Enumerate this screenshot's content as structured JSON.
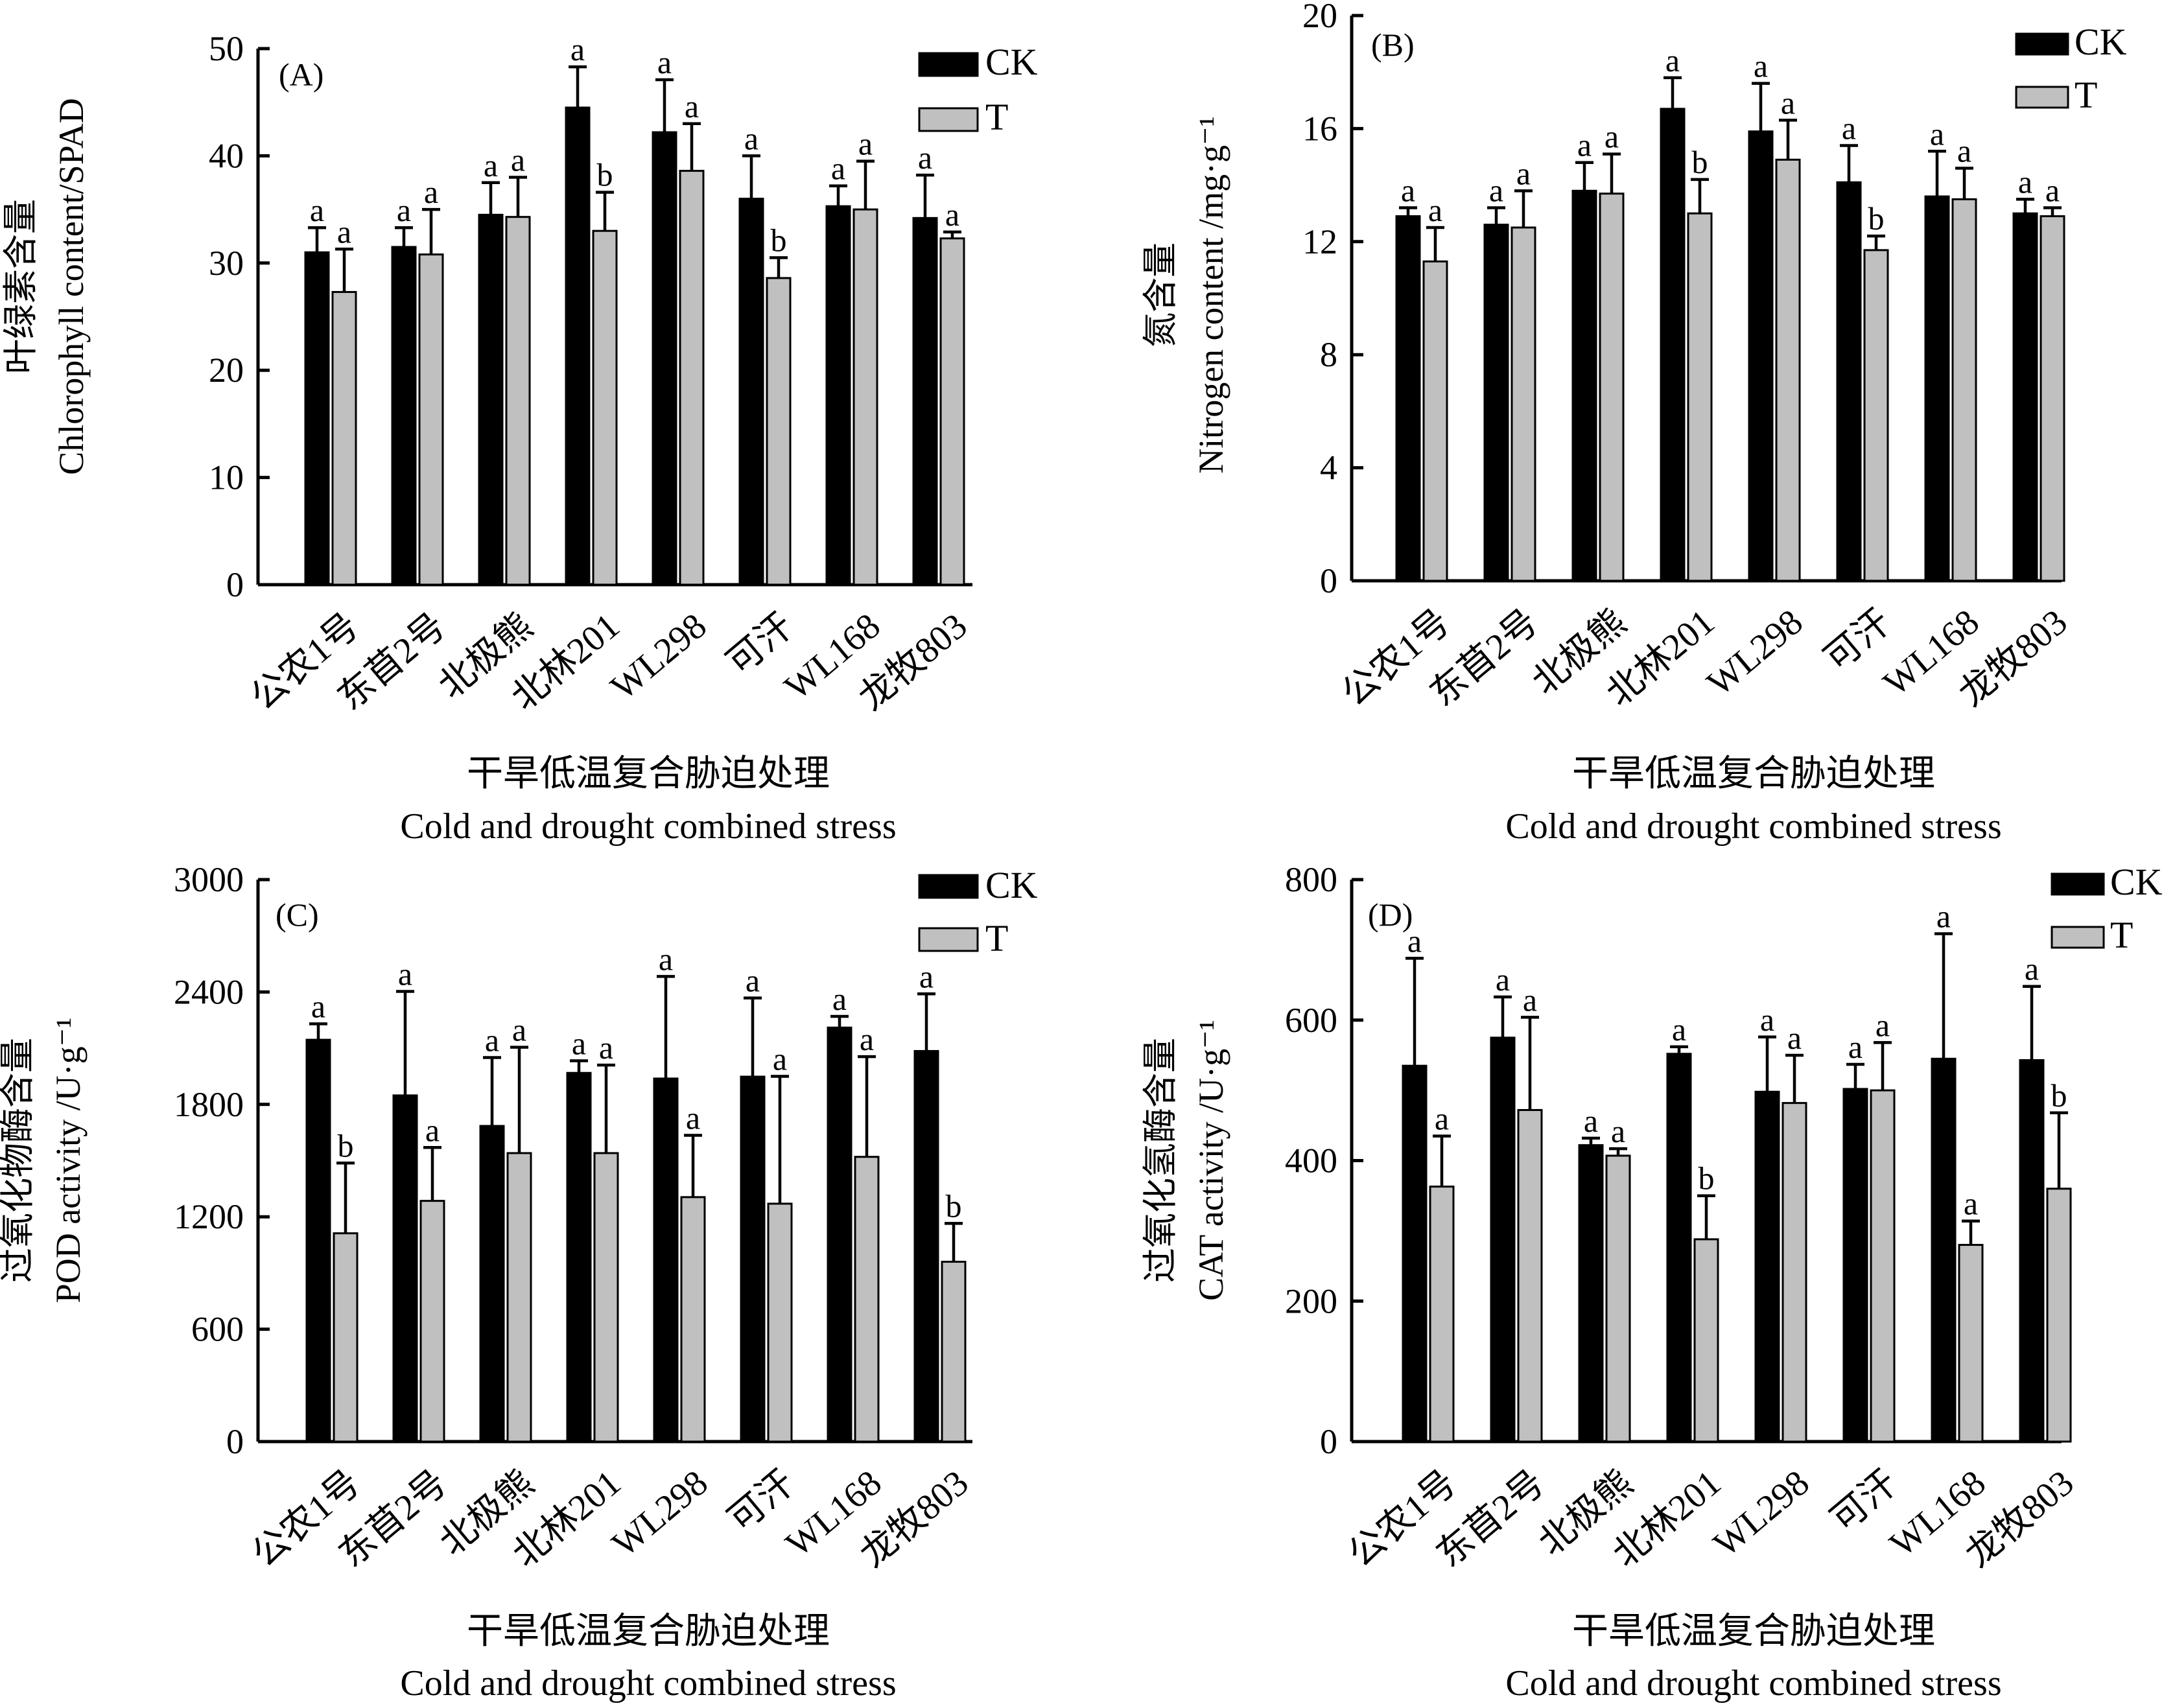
{
  "colors": {
    "CK": "#000000",
    "T": "#c0c0c0"
  },
  "chart_data": [
    {
      "type": "bar",
      "panel": "(A)",
      "categories": [
        "公农1号",
        "东苜2号",
        "北极熊",
        "北林201",
        "WL298",
        "可汗",
        "WL168",
        "龙牧803"
      ],
      "ylabel_cn": "叶绿素含量",
      "ylabel_en": "Chlorophyll content/SPAD",
      "xlabel_cn": "干旱低温复合胁迫处理",
      "xlabel_en": "Cold and drought combined stress",
      "ylim": [
        0,
        50
      ],
      "yticks": [
        0,
        10,
        20,
        30,
        40,
        50
      ],
      "series": [
        {
          "name": "CK",
          "values": [
            31.0,
            31.5,
            34.5,
            44.5,
            42.2,
            36.0,
            35.3,
            34.2
          ],
          "errors": [
            2.3,
            1.8,
            3.0,
            3.8,
            4.9,
            4.0,
            1.9,
            4.0
          ],
          "letters": [
            "a",
            "a",
            "a",
            "a",
            "a",
            "a",
            "a",
            "a"
          ]
        },
        {
          "name": "T",
          "values": [
            27.3,
            30.8,
            34.3,
            33.0,
            38.6,
            28.6,
            35.0,
            32.3
          ],
          "errors": [
            4.0,
            4.2,
            3.7,
            3.6,
            4.4,
            1.9,
            4.5,
            0.6
          ],
          "letters": [
            "a",
            "a",
            "a",
            "b",
            "a",
            "b",
            "a",
            "a"
          ]
        }
      ],
      "legend": [
        "CK",
        "T"
      ],
      "legend_position": "top-right"
    },
    {
      "type": "bar",
      "panel": "(B)",
      "categories": [
        "公农1号",
        "东苜2号",
        "北极熊",
        "北林201",
        "WL298",
        "可汗",
        "WL168",
        "龙牧803"
      ],
      "ylabel_cn": "氮含量",
      "ylabel_en": "Nitrogen content /mg·g⁻¹",
      "xlabel_cn": "干旱低温复合胁迫处理",
      "xlabel_en": "Cold and drought combined stress",
      "ylim": [
        0,
        20
      ],
      "yticks": [
        0,
        4,
        8,
        12,
        16,
        20
      ],
      "series": [
        {
          "name": "CK",
          "values": [
            12.9,
            12.6,
            13.8,
            16.7,
            15.9,
            14.1,
            13.6,
            13.0
          ],
          "errors": [
            0.3,
            0.6,
            1.0,
            1.1,
            1.7,
            1.3,
            1.6,
            0.5
          ],
          "letters": [
            "a",
            "a",
            "a",
            "a",
            "a",
            "a",
            "a",
            "a"
          ]
        },
        {
          "name": "T",
          "values": [
            11.3,
            12.5,
            13.7,
            13.0,
            14.9,
            11.7,
            13.5,
            12.9
          ],
          "errors": [
            1.2,
            1.3,
            1.4,
            1.2,
            1.4,
            0.5,
            1.1,
            0.3
          ],
          "letters": [
            "a",
            "a",
            "a",
            "b",
            "a",
            "b",
            "a",
            "a"
          ]
        }
      ],
      "legend": [
        "CK",
        "T"
      ],
      "legend_position": "top-right"
    },
    {
      "type": "bar",
      "panel": "(C)",
      "categories": [
        "公农1号",
        "东苜2号",
        "北极熊",
        "北林201",
        "WL298",
        "可汗",
        "WL168",
        "龙牧803"
      ],
      "ylabel_cn": "过氧化物酶含量",
      "ylabel_en": "POD activity /U·g⁻¹",
      "xlabel_cn": "干旱低温复合胁迫处理",
      "xlabel_en": "Cold and drought combined stress",
      "ylim": [
        0,
        3000
      ],
      "yticks": [
        0,
        600,
        1200,
        1800,
        2400,
        3000
      ],
      "series": [
        {
          "name": "CK",
          "values": [
            2145,
            1848,
            1685,
            1968,
            1938,
            1948,
            2210,
            2085
          ],
          "errors": [
            85,
            555,
            365,
            65,
            545,
            420,
            60,
            305
          ],
          "letters": [
            "a",
            "a",
            "a",
            "a",
            "a",
            "a",
            "a",
            "a"
          ]
        },
        {
          "name": "T",
          "values": [
            1112,
            1285,
            1540,
            1540,
            1305,
            1270,
            1520,
            960
          ],
          "errors": [
            375,
            285,
            565,
            470,
            330,
            680,
            535,
            205
          ],
          "letters": [
            "b",
            "a",
            "a",
            "a",
            "a",
            "a",
            "a",
            "b"
          ]
        }
      ],
      "legend": [
        "CK",
        "T"
      ],
      "legend_position": "top-right"
    },
    {
      "type": "bar",
      "panel": "(D)",
      "categories": [
        "公农1号",
        "东苜2号",
        "北极熊",
        "北林201",
        "WL298",
        "可汗",
        "WL168",
        "龙牧803"
      ],
      "ylabel_cn": "过氧化氢酶含量",
      "ylabel_en": "CAT activity /U·g⁻¹",
      "xlabel_cn": "干旱低温复合胁迫处理",
      "xlabel_en": "Cold and drought combined stress",
      "ylim": [
        0,
        800
      ],
      "yticks": [
        0,
        200,
        400,
        600,
        800
      ],
      "series": [
        {
          "name": "CK",
          "values": [
            535,
            575,
            422,
            552,
            498,
            502,
            545,
            543
          ],
          "errors": [
            153,
            58,
            10,
            10,
            78,
            35,
            178,
            105
          ],
          "letters": [
            "a",
            "a",
            "a",
            "a",
            "a",
            "a",
            "a",
            "a"
          ]
        },
        {
          "name": "T",
          "values": [
            363,
            472,
            407,
            288,
            482,
            500,
            280,
            360
          ],
          "errors": [
            72,
            132,
            10,
            62,
            68,
            68,
            34,
            108
          ],
          "letters": [
            "a",
            "a",
            "a",
            "b",
            "a",
            "a",
            "a",
            "b"
          ]
        }
      ],
      "legend": [
        "CK",
        "T"
      ],
      "legend_position": "top-right"
    }
  ]
}
